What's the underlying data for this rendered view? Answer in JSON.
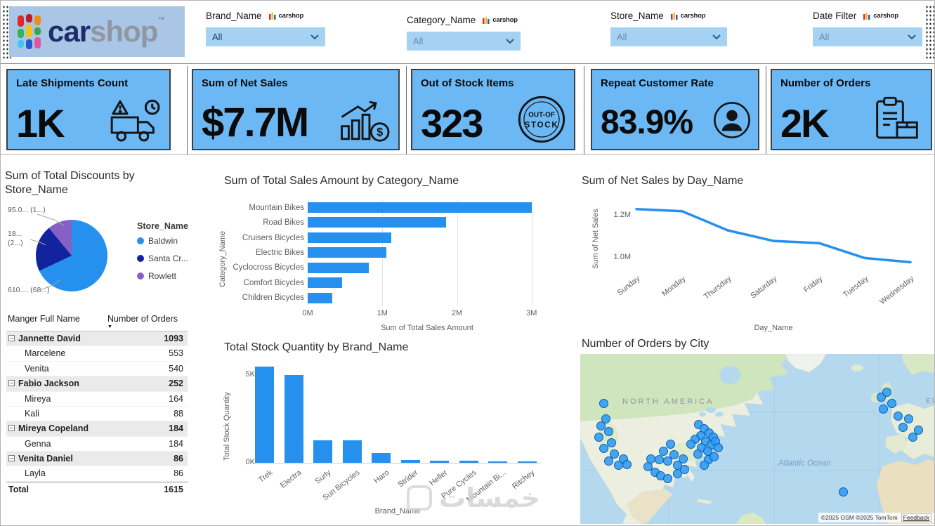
{
  "logo": {
    "car": "car",
    "shop": "shop",
    "tm": "™",
    "mini_text": "carshop"
  },
  "icons": {
    "sort_descending": "▼"
  },
  "watermark": {
    "text": "خمسات"
  },
  "filters": [
    {
      "label": "Brand_Name",
      "value": "All"
    },
    {
      "label": "Category_Name",
      "value": "All"
    },
    {
      "label": "Store_Name",
      "value": "All"
    },
    {
      "label": "Date Filter",
      "value": "All"
    }
  ],
  "kpis": [
    {
      "title": "Late Shipments Count",
      "value": "1K",
      "icon": "late-shipments-truck-icon"
    },
    {
      "title": "Sum of Net Sales",
      "value": "$7.7M",
      "icon": "net-sales-growth-icon"
    },
    {
      "title": "Out of Stock Items",
      "value": "323",
      "icon": "out-of-stock-stamp-icon"
    },
    {
      "title": "Repeat Customer Rate",
      "value": "83.9%",
      "icon": "repeat-customer-icon"
    },
    {
      "title": "Number of Orders",
      "value": "2K",
      "icon": "orders-clipboard-icon"
    }
  ],
  "colors": {
    "accent_blue": "#2590EE",
    "card_fill": "#6CB8F4",
    "pie_colors": [
      "#2590EE",
      "#12239E",
      "#8661C5"
    ]
  },
  "chart_data": [
    {
      "id": "discounts_by_store",
      "type": "pie",
      "title": "Sum of Total Discounts by Store_Name",
      "legend_title": "Store_Name",
      "legend_position": "right",
      "slices": [
        {
          "name": "Baldwin",
          "pct": 68,
          "color": "#2590EE",
          "callout": "610.... (68...)"
        },
        {
          "name": "Santa Cr...",
          "pct": 21,
          "color": "#12239E",
          "callout": "18... (2...)"
        },
        {
          "name": "Rowlett",
          "pct": 11,
          "color": "#8661C5",
          "callout": "95.0... (1...)"
        }
      ]
    },
    {
      "id": "sales_by_category",
      "type": "bar",
      "orientation": "horizontal",
      "title": "Sum of Total Sales Amount by Category_Name",
      "xlabel": "Sum of Total Sales Amount",
      "ylabel": "Category_Name",
      "categories": [
        "Mountain Bikes",
        "Road Bikes",
        "Cruisers Bicycles",
        "Electric Bikes",
        "Cyclocross Bicycles",
        "Comfort Bicycles",
        "Children Bicycles"
      ],
      "values_millions": [
        3.0,
        1.85,
        1.12,
        1.05,
        0.82,
        0.46,
        0.33
      ],
      "xlim_millions": [
        0,
        3.2
      ],
      "xticks": [
        {
          "value": 0,
          "label": "0M"
        },
        {
          "value": 1,
          "label": "1M"
        },
        {
          "value": 2,
          "label": "2M"
        },
        {
          "value": 3,
          "label": "3M"
        }
      ]
    },
    {
      "id": "net_sales_by_day",
      "type": "line",
      "title": "Sum of Net Sales by Day_Name",
      "xlabel": "Day_Name",
      "ylabel": "Sum of Net Sales",
      "categories": [
        "Sunday",
        "Monday",
        "Thursday",
        "Saturday",
        "Friday",
        "Tuesday",
        "Wednesday"
      ],
      "values_millions": [
        1.23,
        1.22,
        1.13,
        1.08,
        1.07,
        1.0,
        0.98
      ],
      "ylim_millions": [
        0.955,
        1.285
      ],
      "yticks": [
        {
          "value": 1.0,
          "label": "1.0M"
        },
        {
          "value": 1.2,
          "label": "1.2M"
        }
      ]
    },
    {
      "id": "stock_by_brand",
      "type": "bar",
      "orientation": "vertical",
      "title": "Total Stock Quantity by Brand_Name",
      "xlabel": "Brand_Name",
      "ylabel": "Total Stock Quantity",
      "categories": [
        "Trek",
        "Electra",
        "Surly",
        "Sun Bicycles",
        "Haro",
        "Strider",
        "Heller",
        "Pure Cycles",
        "Mountain Bi...",
        "Ritchey"
      ],
      "values_thousands": [
        5.5,
        5.0,
        1.3,
        1.28,
        0.55,
        0.17,
        0.14,
        0.12,
        0.1,
        0.08
      ],
      "ylim_thousands": [
        0,
        5.8
      ],
      "yticks": [
        {
          "value": 0,
          "label": "0K"
        },
        {
          "value": 5,
          "label": "5K"
        }
      ]
    },
    {
      "id": "orders_by_manager",
      "type": "table",
      "columns": [
        "Manger Full Name",
        "Number of Orders"
      ],
      "rows": [
        {
          "label": "Jannette David",
          "value": "1093",
          "level": "group"
        },
        {
          "label": "Marcelene",
          "value": "553",
          "level": "child"
        },
        {
          "label": "Venita",
          "value": "540",
          "level": "child"
        },
        {
          "label": "Fabio Jackson",
          "value": "252",
          "level": "group"
        },
        {
          "label": "Mireya",
          "value": "164",
          "level": "child"
        },
        {
          "label": "Kali",
          "value": "88",
          "level": "child"
        },
        {
          "label": "Mireya Copeland",
          "value": "184",
          "level": "group"
        },
        {
          "label": "Genna",
          "value": "184",
          "level": "child"
        },
        {
          "label": "Venita Daniel",
          "value": "86",
          "level": "group"
        },
        {
          "label": "Layla",
          "value": "86",
          "level": "child"
        },
        {
          "label": "Total",
          "value": "1615",
          "level": "total"
        }
      ]
    },
    {
      "id": "orders_by_city_map",
      "type": "scatter",
      "title": "Number of Orders by City",
      "map_labels": {
        "region": "NORTH AMERICA",
        "ocean": "Atlantic Ocean",
        "region2": "EUR"
      },
      "attribution": "©2025 OSM ©2025 TomTom",
      "feedback_label": "Feedback",
      "markers": [
        [
          33,
          70
        ],
        [
          36,
          92
        ],
        [
          29,
          102
        ],
        [
          40,
          110
        ],
        [
          26,
          118
        ],
        [
          44,
          126
        ],
        [
          33,
          134
        ],
        [
          48,
          142
        ],
        [
          40,
          152
        ],
        [
          54,
          158
        ],
        [
          61,
          149
        ],
        [
          66,
          157
        ],
        [
          96,
          160
        ],
        [
          106,
          168
        ],
        [
          114,
          173
        ],
        [
          124,
          177
        ],
        [
          138,
          170
        ],
        [
          148,
          164
        ],
        [
          100,
          149
        ],
        [
          118,
          138
        ],
        [
          128,
          128
        ],
        [
          133,
          143
        ],
        [
          124,
          152
        ],
        [
          138,
          158
        ],
        [
          146,
          149
        ],
        [
          112,
          150
        ],
        [
          168,
          100
        ],
        [
          176,
          106
        ],
        [
          183,
          112
        ],
        [
          171,
          116
        ],
        [
          189,
          118
        ],
        [
          178,
          124
        ],
        [
          163,
          121
        ],
        [
          186,
          129
        ],
        [
          172,
          133
        ],
        [
          192,
          124
        ],
        [
          181,
          138
        ],
        [
          167,
          142
        ],
        [
          157,
          128
        ],
        [
          196,
          133
        ],
        [
          182,
          150
        ],
        [
          176,
          158
        ],
        [
          190,
          146
        ],
        [
          374,
          196
        ],
        [
          428,
          61
        ],
        [
          436,
          54
        ],
        [
          443,
          70
        ],
        [
          452,
          88
        ],
        [
          459,
          104
        ],
        [
          467,
          92
        ],
        [
          473,
          118
        ],
        [
          431,
          78
        ],
        [
          481,
          108
        ]
      ]
    }
  ]
}
